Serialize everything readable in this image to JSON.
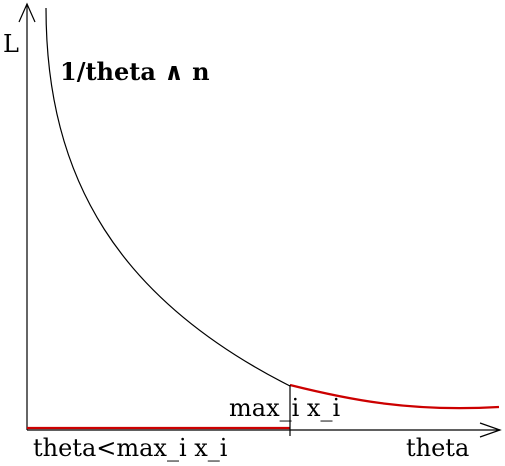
{
  "chart_data": {
    "type": "line",
    "ylabel": "L",
    "xlabel": "theta",
    "series": [
      {
        "label": "1/theta ∧ n",
        "color": "#000000"
      },
      {
        "label": "theta<max_i  x_i",
        "color": "#cc0000"
      }
    ],
    "annotations": [
      {
        "text": "max_i  x_i"
      }
    ]
  }
}
